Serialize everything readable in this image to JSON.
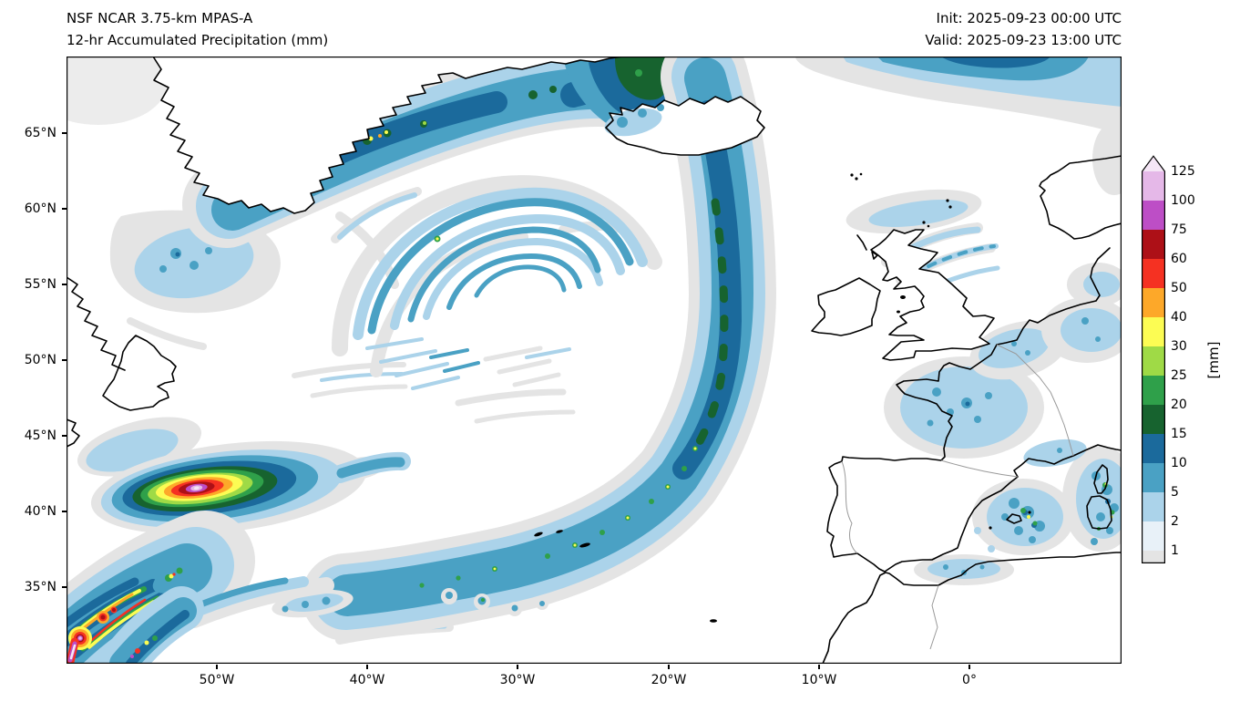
{
  "header": {
    "model_title": "NSF NCAR 3.75-km MPAS-A",
    "product_title": "12-hr Accumulated Precipitation (mm)",
    "init_time": "Init: 2025-09-23 00:00 UTC",
    "valid_time": "Valid: 2025-09-23 13:00 UTC"
  },
  "axes": {
    "lat_ticks": [
      "65°N",
      "60°N",
      "55°N",
      "50°N",
      "45°N",
      "40°N",
      "35°N"
    ],
    "lon_ticks": [
      "50°W",
      "40°W",
      "30°W",
      "20°W",
      "10°W",
      "0°"
    ]
  },
  "colorbar": {
    "unit": "[mm]",
    "tick_labels_bottom_to_top": [
      "1",
      "2",
      "5",
      "10",
      "15",
      "20",
      "25",
      "30",
      "40",
      "50",
      "60",
      "75",
      "100",
      "125"
    ],
    "bands_bottom_to_top": [
      {
        "range": "<1",
        "color": "#e4e4e4"
      },
      {
        "range": "1-2",
        "color": "#e8f1f8"
      },
      {
        "range": "2-5",
        "color": "#abd3ea"
      },
      {
        "range": "5-10",
        "color": "#4aa1c4"
      },
      {
        "range": "10-15",
        "color": "#1b6a9c"
      },
      {
        "range": "15-20",
        "color": "#17632f"
      },
      {
        "range": "20-25",
        "color": "#2fa04a"
      },
      {
        "range": "25-30",
        "color": "#9fda46"
      },
      {
        "range": "30-40",
        "color": "#fcfc53"
      },
      {
        "range": "40-50",
        "color": "#fda829"
      },
      {
        "range": "50-60",
        "color": "#f53122"
      },
      {
        "range": "60-75",
        "color": "#ad1017"
      },
      {
        "range": "75-100",
        "color": "#bd4ec6"
      },
      {
        "range": "100-125",
        "color": "#e5b8e8"
      },
      {
        "range": ">125",
        "color": "#f5e6f6"
      }
    ]
  },
  "chart_data": {
    "type": "heatmap",
    "title": "12-hr Accumulated Precipitation (mm)",
    "model": "NSF NCAR 3.75-km MPAS-A",
    "init": "2025-09-23 00:00 UTC",
    "valid": "2025-09-23 13:00 UTC",
    "x_ticks": [
      "50°W",
      "40°W",
      "30°W",
      "20°W",
      "10°W",
      "0°"
    ],
    "y_ticks": [
      "65°N",
      "60°N",
      "55°N",
      "50°N",
      "45°N",
      "40°N",
      "35°N"
    ],
    "colorbar_unit": "[mm]",
    "contour_levels_mm": [
      1,
      2,
      5,
      10,
      15,
      20,
      25,
      30,
      40,
      50,
      60,
      75,
      100,
      125
    ],
    "legend_position": "right",
    "grid": false,
    "features_visible": [
      "Occluded spiral rain band near 33W 57N (2-10 mm arcs)",
      "Long frontal band from north of Iceland curving south to ~38N 25W (5-20 mm, embedded 20-40 mm cells)",
      "Heavy precipitation band along southeast Greenland coast with 20-50 mm specks",
      "Dark 10-20 mm mass in Denmark Strait north of Iceland",
      "Intense elongated storm east of Newfoundland near 49W 42N with >100 mm core (yellow/orange/red/magenta rings)",
      "Convective streaks in southwest corner near 57W 33N with cells exceeding 100 mm",
      "Band over Norwegian Sea along top edge (5-15 mm)",
      "Light rain arcs northwest of Scotland",
      "Light rain over Bay of Biscay, Brittany and western France",
      "Showers over northeast Spain, Balearic Islands and near Sardinia/Corsica (up to 30-40 mm specks)"
    ]
  }
}
